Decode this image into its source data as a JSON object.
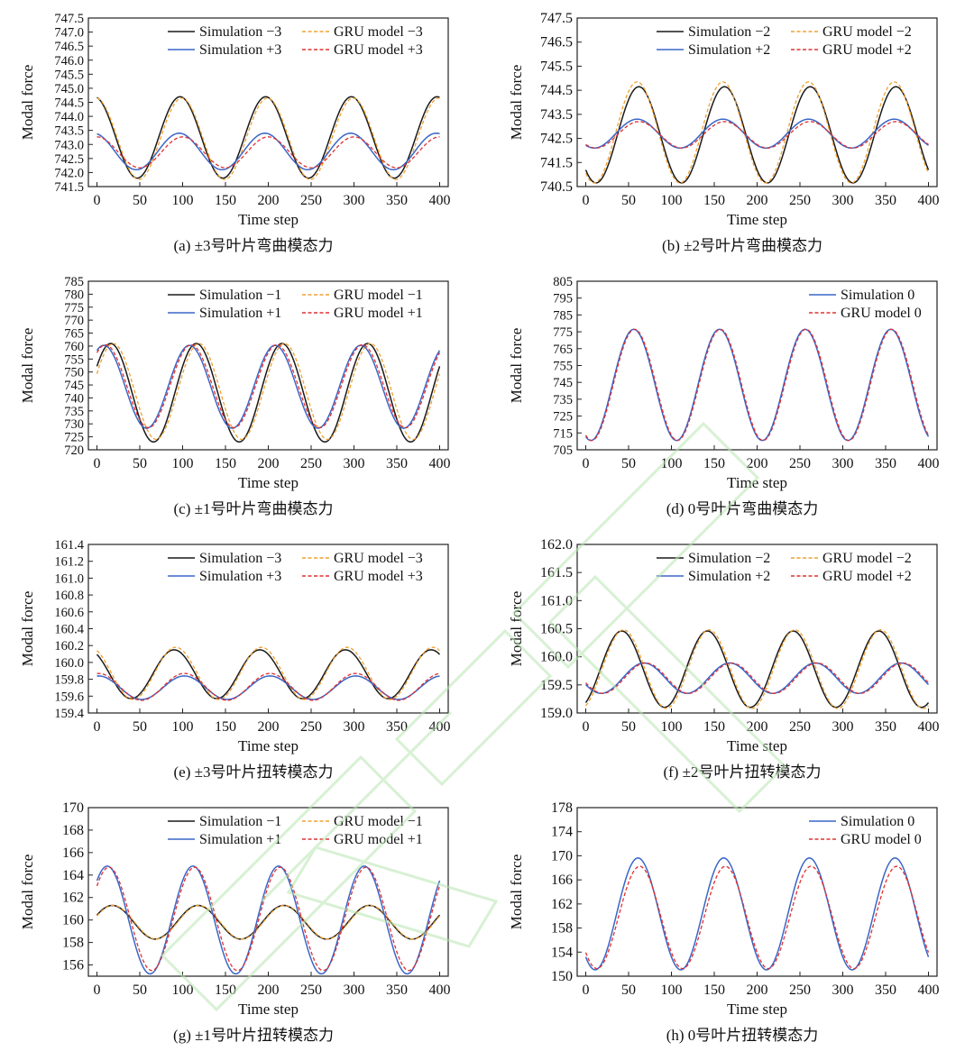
{
  "colors": {
    "sim_neg": "#1a1a1a",
    "sim_pos": "#3a66c8",
    "gru_neg": "#f0a030",
    "gru_pos": "#e03030",
    "watermark": "#b8e6b0"
  },
  "chart_data": [
    {
      "type": "line",
      "caption": "(a) ±3号叶片弯曲模态力",
      "xlabel": "Time step",
      "ylabel": "Modal force",
      "xlim": [
        -10,
        410
      ],
      "ylim": [
        741.5,
        747.5
      ],
      "xticks": [
        0,
        50,
        100,
        150,
        200,
        250,
        300,
        350,
        400
      ],
      "xtick_labels": [
        "0",
        "50",
        "100",
        "150",
        "200",
        "250",
        "300",
        "350",
        "400"
      ],
      "yticks": [
        741.5,
        742.0,
        742.5,
        743.0,
        743.5,
        744.0,
        744.5,
        745.0,
        745.5,
        746.0,
        746.5,
        747.0,
        747.5
      ],
      "ytick_labels": [
        "741.5",
        "742.0",
        "742.5",
        "743.0",
        "743.5",
        "744.0",
        "744.5",
        "745.0",
        "745.5",
        "746.0",
        "746.5",
        "747.0",
        "747.5"
      ],
      "legend": "top-right",
      "legend_columns": 2,
      "series": [
        {
          "name": "Simulation −3",
          "role": "sim_neg",
          "dash": "solid",
          "mean": 743.25,
          "amplitude": 1.45,
          "period": 100,
          "peak_x": 97
        },
        {
          "name": "GRU model −3",
          "role": "gru_neg",
          "dash": "dashed",
          "mean": 743.2,
          "amplitude": 1.45,
          "period": 100,
          "peak_x": 99
        },
        {
          "name": "Simulation +3",
          "role": "sim_pos",
          "dash": "solid",
          "mean": 742.75,
          "amplitude": 0.65,
          "period": 100,
          "peak_x": 96
        },
        {
          "name": "GRU model +3",
          "role": "gru_pos",
          "dash": "dashed",
          "mean": 742.72,
          "amplitude": 0.55,
          "period": 100,
          "peak_x": 100
        }
      ]
    },
    {
      "type": "line",
      "caption": "(b) ±2号叶片弯曲模态力",
      "xlabel": "Time step",
      "ylabel": "Modal force",
      "xlim": [
        -10,
        410
      ],
      "ylim": [
        740.5,
        747.5
      ],
      "xticks": [
        0,
        50,
        100,
        150,
        200,
        250,
        300,
        350,
        400
      ],
      "xtick_labels": [
        "0",
        "50",
        "100",
        "150",
        "200",
        "250",
        "300",
        "350",
        "400"
      ],
      "yticks": [
        740.5,
        741.5,
        742.5,
        743.5,
        744.5,
        745.5,
        746.5,
        747.5
      ],
      "ytick_labels": [
        "740.5",
        "741.5",
        "742.5",
        "743.5",
        "744.5",
        "745.5",
        "746.5",
        "747.5"
      ],
      "legend": "top-right",
      "legend_columns": 2,
      "series": [
        {
          "name": "Simulation −2",
          "role": "sim_neg",
          "dash": "solid",
          "mean": 742.65,
          "amplitude": 2.0,
          "period": 100,
          "peak_x": 62
        },
        {
          "name": "GRU model −2",
          "role": "gru_neg",
          "dash": "dashed",
          "mean": 742.75,
          "amplitude": 2.1,
          "period": 100,
          "peak_x": 60
        },
        {
          "name": "Simulation +2",
          "role": "sim_pos",
          "dash": "solid",
          "mean": 742.7,
          "amplitude": 0.6,
          "period": 100,
          "peak_x": 60
        },
        {
          "name": "GRU model +2",
          "role": "gru_pos",
          "dash": "dashed",
          "mean": 742.65,
          "amplitude": 0.55,
          "period": 100,
          "peak_x": 62
        }
      ]
    },
    {
      "type": "line",
      "caption": "(c) ±1号叶片弯曲模态力",
      "xlabel": "Time step",
      "ylabel": "Modal force",
      "xlim": [
        -10,
        410
      ],
      "ylim": [
        720,
        785
      ],
      "xticks": [
        0,
        50,
        100,
        150,
        200,
        250,
        300,
        350,
        400
      ],
      "xtick_labels": [
        "0",
        "50",
        "100",
        "150",
        "200",
        "250",
        "300",
        "350",
        "400"
      ],
      "yticks": [
        720,
        725,
        730,
        735,
        740,
        745,
        750,
        755,
        760,
        765,
        770,
        775,
        780,
        785
      ],
      "ytick_labels": [
        "720",
        "725",
        "730",
        "735",
        "740",
        "745",
        "750",
        "755",
        "760",
        "765",
        "770",
        "775",
        "780",
        "785"
      ],
      "legend": "top-right",
      "legend_columns": 2,
      "series": [
        {
          "name": "Simulation −1",
          "role": "sim_neg",
          "dash": "solid",
          "mean": 742,
          "amplitude": 19,
          "period": 100,
          "peak_x": 16
        },
        {
          "name": "GRU model −1",
          "role": "gru_neg",
          "dash": "dashed",
          "mean": 742.5,
          "amplitude": 18.5,
          "period": 100,
          "peak_x": 19
        },
        {
          "name": "Simulation +1",
          "role": "sim_pos",
          "dash": "solid",
          "mean": 744.3,
          "amplitude": 16,
          "period": 100,
          "peak_x": 8
        },
        {
          "name": "GRU model +1",
          "role": "gru_pos",
          "dash": "dashed",
          "mean": 744.5,
          "amplitude": 16,
          "period": 100,
          "peak_x": 10
        }
      ]
    },
    {
      "type": "line",
      "caption": "(d) 0号叶片弯曲模态力",
      "xlabel": "Time step",
      "ylabel": "Modal force",
      "xlim": [
        -10,
        410
      ],
      "ylim": [
        705,
        805
      ],
      "xticks": [
        0,
        50,
        100,
        150,
        200,
        250,
        300,
        350,
        400
      ],
      "xtick_labels": [
        "0",
        "50",
        "100",
        "150",
        "200",
        "250",
        "300",
        "350",
        "400"
      ],
      "yticks": [
        705,
        715,
        725,
        735,
        745,
        755,
        765,
        775,
        785,
        795,
        805
      ],
      "ytick_labels": [
        "705",
        "715",
        "725",
        "735",
        "745",
        "755",
        "765",
        "775",
        "785",
        "795",
        "805"
      ],
      "legend": "top-right",
      "legend_columns": 1,
      "series": [
        {
          "name": "Simulation 0",
          "role": "sim_pos",
          "dash": "solid",
          "mean": 743.5,
          "amplitude": 33,
          "period": 100,
          "peak_x": 56
        },
        {
          "name": "GRU model 0",
          "role": "gru_pos",
          "dash": "dashed",
          "mean": 743.5,
          "amplitude": 33,
          "period": 100,
          "peak_x": 57
        }
      ]
    },
    {
      "type": "line",
      "caption": "(e) ±3号叶片扭转模态力",
      "xlabel": "Time step",
      "ylabel": "Modal force",
      "xlim": [
        -10,
        410
      ],
      "ylim": [
        159.4,
        161.4
      ],
      "xticks": [
        0,
        50,
        100,
        150,
        200,
        250,
        300,
        350,
        400
      ],
      "xtick_labels": [
        "0",
        "50",
        "100",
        "150",
        "200",
        "250",
        "300",
        "350",
        "400"
      ],
      "yticks": [
        159.4,
        159.6,
        159.8,
        160.0,
        160.2,
        160.4,
        160.6,
        160.8,
        161.0,
        161.2,
        161.4
      ],
      "ytick_labels": [
        "159.4",
        "159.6",
        "159.8",
        "160.0",
        "160.2",
        "160.4",
        "160.6",
        "160.8",
        "161.0",
        "161.2",
        "161.4"
      ],
      "legend": "top-right",
      "legend_columns": 2,
      "series": [
        {
          "name": "Simulation −3",
          "role": "sim_neg",
          "dash": "solid",
          "mean": 159.86,
          "amplitude": 0.29,
          "period": 100,
          "peak_x": 90
        },
        {
          "name": "GRU model −3",
          "role": "gru_neg",
          "dash": "dashed",
          "mean": 159.87,
          "amplitude": 0.31,
          "period": 100,
          "peak_x": 92
        },
        {
          "name": "Simulation +3",
          "role": "sim_pos",
          "dash": "solid",
          "mean": 159.7,
          "amplitude": 0.14,
          "period": 100,
          "peak_x": 102
        },
        {
          "name": "GRU model +3",
          "role": "gru_pos",
          "dash": "dashed",
          "mean": 159.71,
          "amplitude": 0.16,
          "period": 100,
          "peak_x": 102
        }
      ]
    },
    {
      "type": "line",
      "caption": "(f) ±2号叶片扭转模态力",
      "xlabel": "Time step",
      "ylabel": "Modal force",
      "xlim": [
        -10,
        410
      ],
      "ylim": [
        159.0,
        162.0
      ],
      "xticks": [
        0,
        50,
        100,
        150,
        200,
        250,
        300,
        350,
        400
      ],
      "xtick_labels": [
        "0",
        "50",
        "100",
        "150",
        "200",
        "250",
        "300",
        "350",
        "400"
      ],
      "yticks": [
        159.0,
        159.5,
        160.0,
        160.5,
        161.0,
        161.5,
        162.0
      ],
      "ytick_labels": [
        "159.0",
        "159.5",
        "160.0",
        "160.5",
        "161.0",
        "161.5",
        "162.0"
      ],
      "legend": "top-right",
      "legend_columns": 2,
      "series": [
        {
          "name": "Simulation −2",
          "role": "sim_neg",
          "dash": "solid",
          "mean": 159.78,
          "amplitude": 0.68,
          "period": 100,
          "peak_x": 42
        },
        {
          "name": "GRU model −2",
          "role": "gru_neg",
          "dash": "dashed",
          "mean": 159.78,
          "amplitude": 0.7,
          "period": 100,
          "peak_x": 44
        },
        {
          "name": "Simulation +2",
          "role": "sim_pos",
          "dash": "solid",
          "mean": 159.62,
          "amplitude": 0.27,
          "period": 100,
          "peak_x": 68
        },
        {
          "name": "GRU model +2",
          "role": "gru_pos",
          "dash": "dashed",
          "mean": 159.62,
          "amplitude": 0.27,
          "period": 100,
          "peak_x": 70
        }
      ]
    },
    {
      "type": "line",
      "caption": "(g) ±1号叶片扭转模态力",
      "xlabel": "Time step",
      "ylabel": "Modal force",
      "xlim": [
        -10,
        410
      ],
      "ylim": [
        155,
        170
      ],
      "xticks": [
        0,
        50,
        100,
        150,
        200,
        250,
        300,
        350,
        400
      ],
      "xtick_labels": [
        "0",
        "50",
        "100",
        "150",
        "200",
        "250",
        "300",
        "350",
        "400"
      ],
      "yticks": [
        156,
        158,
        160,
        162,
        164,
        166,
        168,
        170
      ],
      "ytick_labels": [
        "156",
        "158",
        "160",
        "162",
        "164",
        "166",
        "168",
        "170"
      ],
      "legend": "top-right",
      "legend_columns": 2,
      "series": [
        {
          "name": "Simulation −1",
          "role": "sim_neg",
          "dash": "solid",
          "mean": 159.8,
          "amplitude": 1.5,
          "period": 100,
          "peak_x": 18
        },
        {
          "name": "GRU model −1",
          "role": "gru_neg",
          "dash": "dashed",
          "mean": 159.8,
          "amplitude": 1.5,
          "period": 100,
          "peak_x": 19
        },
        {
          "name": "Simulation +1",
          "role": "sim_pos",
          "dash": "solid",
          "mean": 160.0,
          "amplitude": 4.8,
          "period": 100,
          "peak_x": 12
        },
        {
          "name": "GRU model +1",
          "role": "gru_pos",
          "dash": "dashed",
          "mean": 160.1,
          "amplitude": 4.6,
          "period": 100,
          "peak_x": 14
        }
      ]
    },
    {
      "type": "line",
      "caption": "(h) 0号叶片扭转模态力",
      "xlabel": "Time step",
      "ylabel": "Modal force",
      "xlim": [
        -10,
        410
      ],
      "ylim": [
        150,
        178
      ],
      "xticks": [
        0,
        50,
        100,
        150,
        200,
        250,
        300,
        350,
        400
      ],
      "xtick_labels": [
        "0",
        "50",
        "100",
        "150",
        "200",
        "250",
        "300",
        "350",
        "400"
      ],
      "yticks": [
        150,
        154,
        158,
        162,
        166,
        170,
        174,
        178
      ],
      "ytick_labels": [
        "150",
        "154",
        "158",
        "162",
        "166",
        "170",
        "174",
        "178"
      ],
      "legend": "top-right",
      "legend_columns": 1,
      "series": [
        {
          "name": "Simulation 0",
          "role": "sim_pos",
          "dash": "solid",
          "mean": 160.35,
          "amplitude": 9.3,
          "period": 100,
          "peak_x": 61
        },
        {
          "name": "GRU model 0",
          "role": "gru_pos",
          "dash": "dashed",
          "mean": 159.75,
          "amplitude": 8.5,
          "period": 100,
          "peak_x": 63
        }
      ]
    }
  ]
}
